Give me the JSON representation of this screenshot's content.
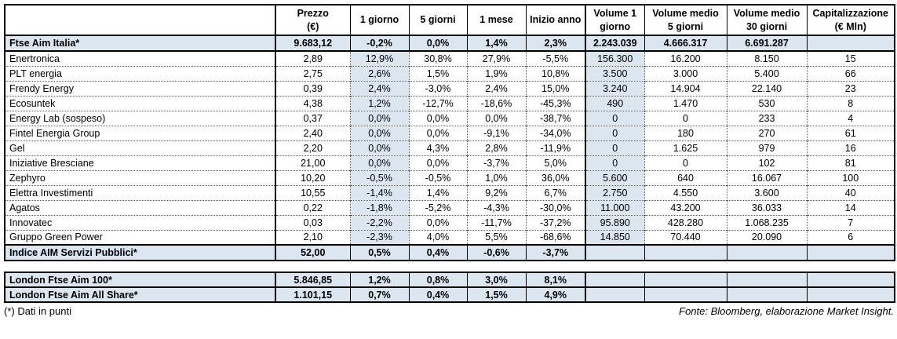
{
  "colors": {
    "highlight": "#dce6f1",
    "border": "#000000"
  },
  "main_table": {
    "columns": [
      "",
      "Prezzo\n(€)",
      "1 giorno",
      "5 giorni",
      "1 mese",
      "Inizio anno",
      "Volume 1\ngiorno",
      "Volume medio\n5 giorni",
      "Volume medio\n30 giorni",
      "Capitalizzazione\n(€ Mln)"
    ],
    "index_row": {
      "name": "Ftse Aim Italia*",
      "values": [
        "9.683,12",
        "-0,2%",
        "0,0%",
        "1,4%",
        "2,3%",
        "2.243.039",
        "4.666.317",
        "6.691.287",
        ""
      ]
    },
    "rows": [
      {
        "name": "Enertronica",
        "values": [
          "2,89",
          "12,9%",
          "30,8%",
          "27,9%",
          "-5,5%",
          "156.300",
          "16.200",
          "8.150",
          "15"
        ]
      },
      {
        "name": "PLT energia",
        "values": [
          "2,75",
          "2,6%",
          "1,5%",
          "1,9%",
          "10,8%",
          "3.500",
          "3.000",
          "5.400",
          "66"
        ]
      },
      {
        "name": "Frendy Energy",
        "values": [
          "0,39",
          "2,4%",
          "-3,0%",
          "2,4%",
          "15,0%",
          "3.240",
          "14.904",
          "22.140",
          "23"
        ]
      },
      {
        "name": "Ecosuntek",
        "values": [
          "4,38",
          "1,2%",
          "-12,7%",
          "-18,6%",
          "-45,3%",
          "490",
          "1.470",
          "530",
          "8"
        ]
      },
      {
        "name": "Energy Lab (sospeso)",
        "values": [
          "0,37",
          "0,0%",
          "0,0%",
          "0,0%",
          "-38,7%",
          "0",
          "0",
          "233",
          "4"
        ]
      },
      {
        "name": "Fintel Energia Group",
        "values": [
          "2,40",
          "0,0%",
          "0,0%",
          "-9,1%",
          "-34,0%",
          "0",
          "180",
          "270",
          "61"
        ]
      },
      {
        "name": "Gel",
        "values": [
          "2,20",
          "0,0%",
          "4,3%",
          "2,8%",
          "-11,9%",
          "0",
          "1.625",
          "979",
          "16"
        ]
      },
      {
        "name": "Iniziative Bresciane",
        "values": [
          "21,00",
          "0,0%",
          "0,0%",
          "-3,7%",
          "5,0%",
          "0",
          "0",
          "102",
          "81"
        ]
      },
      {
        "name": "Zephyro",
        "values": [
          "10,20",
          "-0,5%",
          "-0,5%",
          "1,0%",
          "36,0%",
          "5.600",
          "640",
          "16.067",
          "100"
        ]
      },
      {
        "name": "Elettra Investimenti",
        "values": [
          "10,55",
          "-1,4%",
          "1,4%",
          "9,2%",
          "6,7%",
          "2.750",
          "4.550",
          "3.600",
          "40"
        ]
      },
      {
        "name": "Agatos",
        "values": [
          "0,22",
          "-1,8%",
          "-5,2%",
          "-4,3%",
          "-30,0%",
          "11.000",
          "43.200",
          "36.033",
          "14"
        ]
      },
      {
        "name": "Innovatec",
        "values": [
          "0,03",
          "-2,2%",
          "0,0%",
          "-11,7%",
          "-37,2%",
          "95.890",
          "428.280",
          "1.068.235",
          "7"
        ]
      },
      {
        "name": "Gruppo Green Power",
        "values": [
          "2,10",
          "-2,3%",
          "4,0%",
          "5,5%",
          "-68,6%",
          "14.850",
          "70.440",
          "20.090",
          "6"
        ]
      }
    ],
    "summary_row": {
      "name": "Indice AIM Servizi Pubblici*",
      "values": [
        "52,00",
        "0,5%",
        "0,4%",
        "-0,6%",
        "-3,7%",
        "",
        "",
        "",
        ""
      ]
    }
  },
  "london_table": {
    "rows": [
      {
        "name": "London Ftse Aim 100*",
        "values": [
          "5.846,85",
          "1,2%",
          "0,8%",
          "3,0%",
          "8,1%",
          "",
          "",
          "",
          ""
        ]
      },
      {
        "name": "London Ftse Aim All Share*",
        "values": [
          "1.101,15",
          "0,7%",
          "0,4%",
          "1,5%",
          "4,9%",
          "",
          "",
          "",
          ""
        ]
      }
    ]
  },
  "footnotes": {
    "left": "(*) Dati in punti",
    "right": "Fonte: Bloomberg, elaborazione Market Insight."
  }
}
